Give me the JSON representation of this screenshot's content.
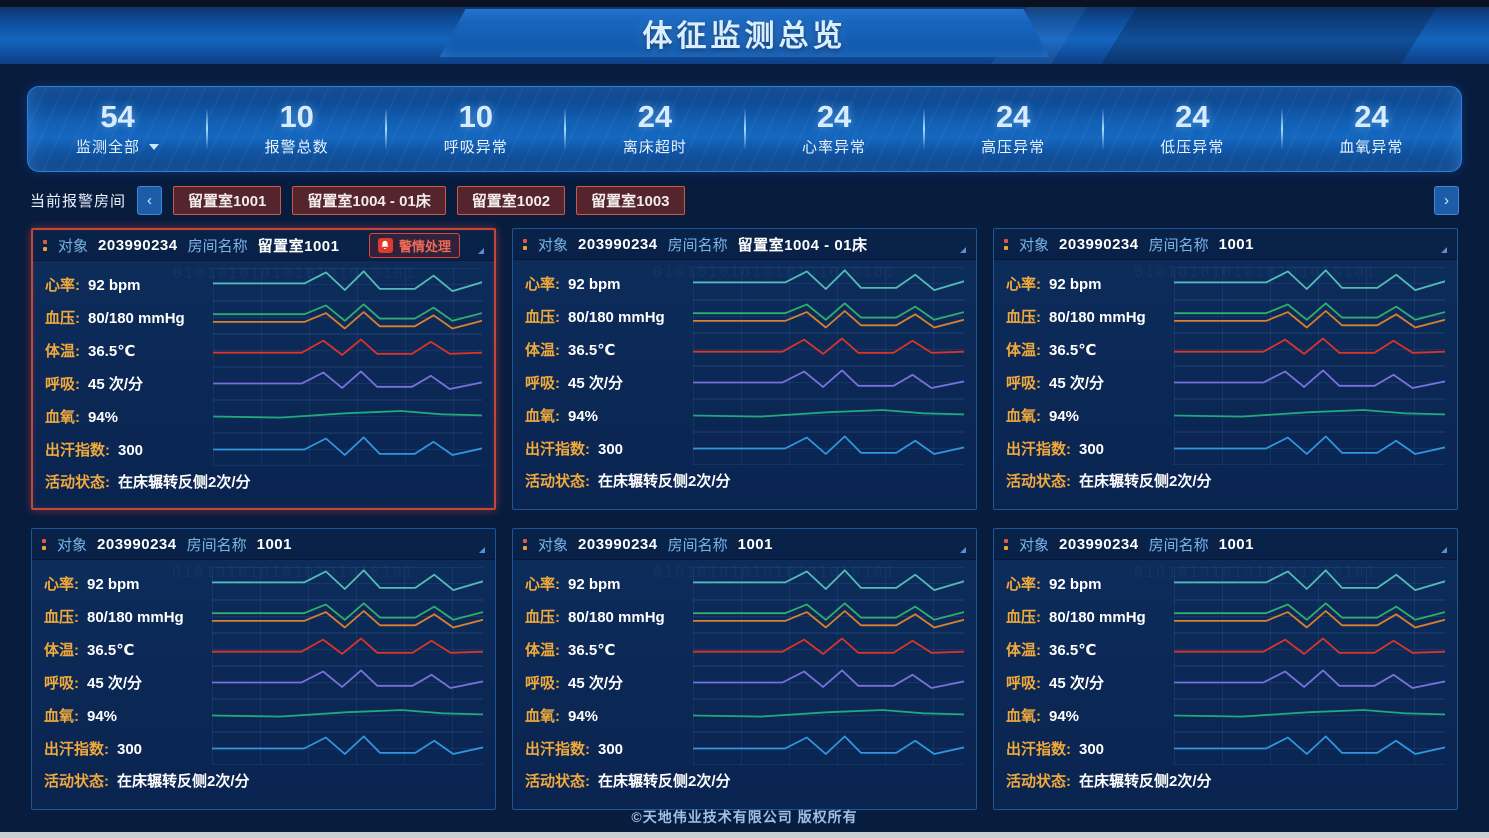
{
  "page": {
    "title": "体征监测总览",
    "footer": "©天地伟业技术有限公司 版权所有",
    "watermark": "0101010101010101010101"
  },
  "colors": {
    "accent_blue": "#1567c0",
    "alarm_red": "#c2463c",
    "label_orange": "#f0a93c",
    "stat_number": "#d7ecff"
  },
  "stats": {
    "items": [
      {
        "value": "54",
        "label": "监测全部",
        "dropdown": true
      },
      {
        "value": "10",
        "label": "报警总数"
      },
      {
        "value": "10",
        "label": "呼吸异常"
      },
      {
        "value": "24",
        "label": "离床超时"
      },
      {
        "value": "24",
        "label": "心率异常"
      },
      {
        "value": "24",
        "label": "高压异常"
      },
      {
        "value": "24",
        "label": "低压异常"
      },
      {
        "value": "24",
        "label": "血氧异常"
      }
    ]
  },
  "alarm_bar": {
    "label": "当前报警房间",
    "prev_icon": "‹",
    "next_icon": "›",
    "rooms": [
      "留置室1001",
      "留置室1004 - 01床",
      "留置室1002",
      "留置室1003"
    ]
  },
  "card_labels": {
    "subject": "对象",
    "room": "房间名称",
    "alarm_button": "警情处理"
  },
  "cards": [
    {
      "subject_id": "203990234",
      "room": "留置室1001",
      "alarm": true
    },
    {
      "subject_id": "203990234",
      "room": "留置室1004 - 01床",
      "alarm": false
    },
    {
      "subject_id": "203990234",
      "room": "1001",
      "alarm": false
    },
    {
      "subject_id": "203990234",
      "room": "1001",
      "alarm": false
    },
    {
      "subject_id": "203990234",
      "room": "1001",
      "alarm": false
    },
    {
      "subject_id": "203990234",
      "room": "1001",
      "alarm": false
    }
  ],
  "metrics": [
    {
      "label": "心率:",
      "value": "92 bpm",
      "series": [
        {
          "name": "heart-rate",
          "color": "#52bdb4",
          "points": [
            [
              0,
              14
            ],
            [
              34,
              14
            ],
            [
              42,
              4
            ],
            [
              49,
              20
            ],
            [
              56,
              3
            ],
            [
              62,
              19
            ],
            [
              75,
              19
            ],
            [
              82,
              7
            ],
            [
              89,
              21
            ],
            [
              100,
              13
            ]
          ]
        }
      ]
    },
    {
      "label": "血压:",
      "value": "80/180 mmHg",
      "series": [
        {
          "name": "bp-high",
          "color": "#2fae6e",
          "points": [
            [
              0,
              12
            ],
            [
              34,
              12
            ],
            [
              42,
              4
            ],
            [
              49,
              18
            ],
            [
              56,
              3
            ],
            [
              62,
              16
            ],
            [
              75,
              16
            ],
            [
              82,
              6
            ],
            [
              89,
              18
            ],
            [
              100,
              11
            ]
          ]
        },
        {
          "name": "bp-low",
          "color": "#d97f2e",
          "points": [
            [
              0,
              19
            ],
            [
              34,
              19
            ],
            [
              42,
              11
            ],
            [
              49,
              25
            ],
            [
              56,
              10
            ],
            [
              62,
              23
            ],
            [
              75,
              23
            ],
            [
              82,
              13
            ],
            [
              89,
              25
            ],
            [
              100,
              18
            ]
          ]
        }
      ]
    },
    {
      "label": "体温:",
      "value": "36.5℃",
      "series": [
        {
          "name": "temperature",
          "color": "#d8342a",
          "points": [
            [
              0,
              17
            ],
            [
              33,
              17
            ],
            [
              41,
              6
            ],
            [
              48,
              19
            ],
            [
              55,
              5
            ],
            [
              61,
              18
            ],
            [
              74,
              18
            ],
            [
              81,
              7
            ],
            [
              88,
              18
            ],
            [
              100,
              17
            ]
          ]
        }
      ]
    },
    {
      "label": "呼吸:",
      "value": "45 次/分",
      "series": [
        {
          "name": "respiration",
          "color": "#7a70dd",
          "points": [
            [
              0,
              15
            ],
            [
              33,
              15
            ],
            [
              41,
              5
            ],
            [
              48,
              19
            ],
            [
              55,
              4
            ],
            [
              61,
              18
            ],
            [
              74,
              18
            ],
            [
              81,
              8
            ],
            [
              88,
              20
            ],
            [
              100,
              14
            ]
          ]
        }
      ]
    },
    {
      "label": "血氧:",
      "value": "94%",
      "series": [
        {
          "name": "spo2",
          "color": "#1fa97d",
          "points": [
            [
              0,
              15
            ],
            [
              25,
              16
            ],
            [
              50,
              12
            ],
            [
              70,
              10
            ],
            [
              85,
              13
            ],
            [
              100,
              14
            ]
          ]
        }
      ]
    },
    {
      "label": "出汗指数:",
      "value": "300",
      "series": [
        {
          "name": "sweat-index",
          "color": "#2f96e0",
          "points": [
            [
              0,
              15
            ],
            [
              34,
              15
            ],
            [
              42,
              5
            ],
            [
              49,
              20
            ],
            [
              56,
              4
            ],
            [
              62,
              19
            ],
            [
              75,
              19
            ],
            [
              82,
              8
            ],
            [
              89,
              20
            ],
            [
              100,
              14
            ]
          ]
        }
      ]
    }
  ],
  "activity": {
    "label": "活动状态:",
    "value": "在床辗转反侧2次/分"
  }
}
